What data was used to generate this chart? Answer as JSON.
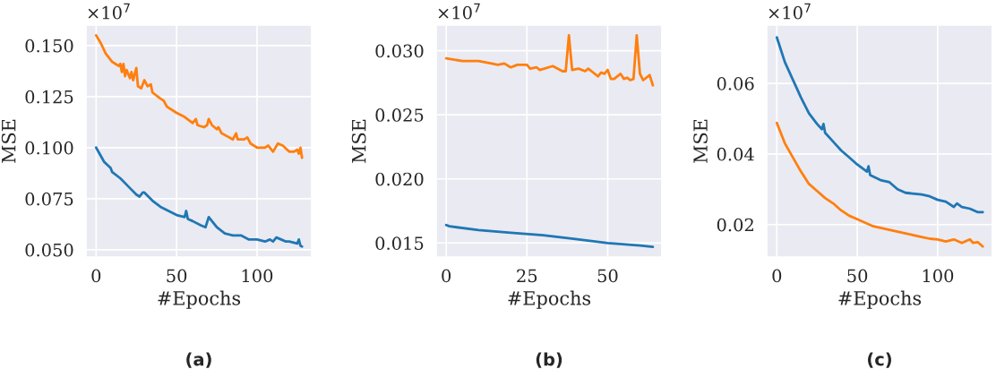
{
  "chart_data": [
    {
      "type": "line",
      "title": "(a)",
      "xlabel": "#Epochs",
      "ylabel": "MSE",
      "annotations": [
        "×10$^{7}$"
      ],
      "grid": true,
      "xlim": [
        -6.3,
        134
      ],
      "ylim": [
        0.0464,
        0.16
      ],
      "xticks": [
        0,
        50,
        100
      ],
      "yticks": [
        {
          "value": 0.05,
          "label": "0.050"
        },
        {
          "value": 0.075,
          "label": "0.075"
        },
        {
          "value": 0.1,
          "label": "0.100"
        },
        {
          "value": 0.125,
          "label": "0.125"
        },
        {
          "value": 0.15,
          "label": "0.150"
        }
      ],
      "series": [
        {
          "color": "#ff7f0e",
          "x": [
            0,
            3,
            6,
            10,
            14,
            15,
            16,
            17,
            18,
            19,
            21,
            22,
            23,
            25,
            26,
            28,
            30,
            32,
            34,
            35,
            40,
            42,
            44,
            50,
            55,
            60,
            62,
            63,
            67,
            69,
            70,
            72,
            75,
            76,
            78,
            85,
            87,
            88,
            92,
            94,
            96,
            100,
            105,
            107,
            110,
            113,
            116,
            120,
            123,
            125,
            126,
            127,
            128
          ],
          "values": [
            0.155,
            0.151,
            0.146,
            0.142,
            0.14,
            0.141,
            0.137,
            0.141,
            0.135,
            0.138,
            0.134,
            0.137,
            0.133,
            0.139,
            0.13,
            0.129,
            0.133,
            0.13,
            0.131,
            0.127,
            0.124,
            0.123,
            0.12,
            0.117,
            0.115,
            0.112,
            0.114,
            0.111,
            0.11,
            0.111,
            0.114,
            0.111,
            0.109,
            0.11,
            0.107,
            0.104,
            0.107,
            0.104,
            0.104,
            0.105,
            0.102,
            0.1,
            0.1,
            0.101,
            0.098,
            0.102,
            0.101,
            0.098,
            0.098,
            0.099,
            0.097,
            0.1,
            0.095
          ]
        },
        {
          "color": "#1f77b4",
          "x": [
            0,
            5,
            9,
            10,
            15,
            20,
            25,
            27,
            29,
            30,
            35,
            40,
            45,
            50,
            55,
            56,
            57,
            60,
            65,
            68,
            70,
            72,
            75,
            80,
            85,
            90,
            95,
            100,
            105,
            108,
            110,
            112,
            115,
            118,
            120,
            125,
            126,
            127,
            128
          ],
          "values": [
            0.1,
            0.093,
            0.09,
            0.088,
            0.085,
            0.081,
            0.077,
            0.076,
            0.078,
            0.078,
            0.074,
            0.071,
            0.069,
            0.067,
            0.066,
            0.069,
            0.065,
            0.064,
            0.062,
            0.061,
            0.066,
            0.064,
            0.061,
            0.058,
            0.057,
            0.057,
            0.055,
            0.055,
            0.054,
            0.055,
            0.054,
            0.056,
            0.055,
            0.054,
            0.054,
            0.053,
            0.055,
            0.052,
            0.0515
          ]
        }
      ]
    },
    {
      "type": "line",
      "title": "(b)",
      "xlabel": "#Epochs",
      "ylabel": "MSE",
      "annotations": [
        "×10$^{7}$"
      ],
      "grid": true,
      "xlim": [
        -3.1,
        66.8
      ],
      "ylim": [
        0.0139,
        0.032
      ],
      "xticks": [
        0,
        25,
        50
      ],
      "yticks": [
        {
          "value": 0.015,
          "label": "0.015"
        },
        {
          "value": 0.02,
          "label": "0.020"
        },
        {
          "value": 0.025,
          "label": "0.025"
        },
        {
          "value": 0.03,
          "label": "0.030"
        }
      ],
      "series": [
        {
          "color": "#ff7f0e",
          "x": [
            0,
            5,
            10,
            14,
            16,
            18,
            20,
            22,
            25,
            26,
            28,
            29,
            33,
            36,
            37,
            38,
            39,
            41,
            43,
            44,
            47,
            48,
            49,
            50,
            51,
            52,
            54,
            55,
            56,
            57,
            58,
            59,
            60,
            61,
            63,
            64
          ],
          "values": [
            0.0294,
            0.0292,
            0.0292,
            0.029,
            0.0289,
            0.029,
            0.0287,
            0.0289,
            0.0289,
            0.0286,
            0.0287,
            0.0285,
            0.0288,
            0.0284,
            0.0284,
            0.0312,
            0.0285,
            0.0286,
            0.0284,
            0.0286,
            0.028,
            0.0283,
            0.0282,
            0.0285,
            0.0278,
            0.0278,
            0.0282,
            0.0278,
            0.0279,
            0.0277,
            0.0278,
            0.0312,
            0.0282,
            0.0277,
            0.0281,
            0.0273
          ]
        },
        {
          "color": "#1f77b4",
          "x": [
            0,
            1,
            10,
            20,
            30,
            40,
            50,
            60,
            64
          ],
          "values": [
            0.0164,
            0.0163,
            0.016,
            0.0158,
            0.0156,
            0.0153,
            0.015,
            0.0148,
            0.0147
          ]
        }
      ]
    },
    {
      "type": "line",
      "title": "(c)",
      "xlabel": "#Epochs",
      "ylabel": "MSE",
      "annotations": [
        "×10$^{7}$"
      ],
      "grid": true,
      "xlim": [
        -6.3,
        134
      ],
      "ylim": [
        0.0108,
        0.0765
      ],
      "xticks": [
        0,
        50,
        100
      ],
      "yticks": [
        {
          "value": 0.02,
          "label": "0.02"
        },
        {
          "value": 0.04,
          "label": "0.04"
        },
        {
          "value": 0.06,
          "label": "0.06"
        }
      ],
      "series": [
        {
          "color": "#1f77b4",
          "x": [
            0,
            5,
            10,
            15,
            20,
            25,
            28,
            29,
            30,
            35,
            40,
            45,
            50,
            56,
            57,
            58,
            65,
            70,
            75,
            80,
            90,
            95,
            100,
            105,
            110,
            112,
            115,
            120,
            125,
            128
          ],
          "values": [
            0.073,
            0.066,
            0.061,
            0.056,
            0.0515,
            0.0485,
            0.047,
            0.0485,
            0.046,
            0.0435,
            0.041,
            0.039,
            0.037,
            0.035,
            0.0365,
            0.034,
            0.0325,
            0.032,
            0.03,
            0.029,
            0.0285,
            0.028,
            0.027,
            0.0265,
            0.025,
            0.026,
            0.025,
            0.0245,
            0.0235,
            0.0235
          ]
        },
        {
          "color": "#ff7f0e",
          "x": [
            0,
            5,
            10,
            15,
            20,
            25,
            30,
            35,
            40,
            45,
            50,
            55,
            60,
            65,
            70,
            75,
            80,
            85,
            90,
            95,
            100,
            105,
            110,
            115,
            120,
            122,
            125,
            128
          ],
          "values": [
            0.0488,
            0.043,
            0.039,
            0.035,
            0.0315,
            0.0295,
            0.0275,
            0.026,
            0.024,
            0.0225,
            0.0215,
            0.0205,
            0.0195,
            0.019,
            0.0185,
            0.018,
            0.0175,
            0.017,
            0.0165,
            0.016,
            0.0158,
            0.0152,
            0.0158,
            0.0148,
            0.0158,
            0.0148,
            0.015,
            0.0138
          ]
        }
      ]
    }
  ]
}
